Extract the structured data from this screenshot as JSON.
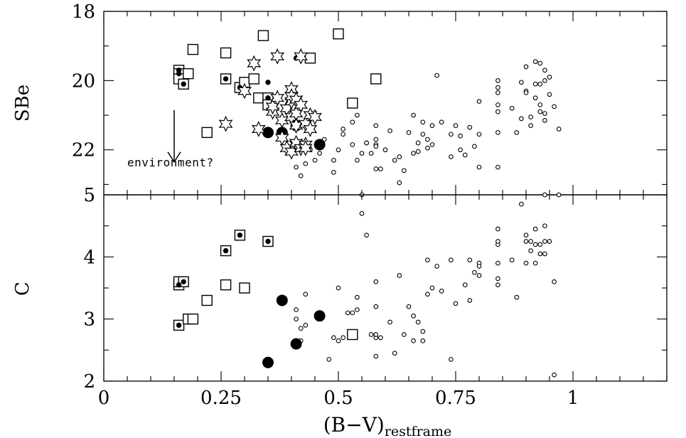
{
  "chart_data": [
    {
      "type": "scatter",
      "panel": "top",
      "ylabel": "SBe",
      "xlim": [
        0,
        1.2
      ],
      "ylim": [
        23.3,
        18
      ],
      "y_inverted": true,
      "yticks": [
        18,
        20,
        22
      ],
      "ytick_labels": [
        "18",
        "20",
        "22"
      ],
      "annotation": {
        "text": "environment?",
        "arrow_x": 0.15,
        "arrow_from_y": 20.85,
        "arrow_to_y": 22.35
      },
      "series": [
        {
          "marker": "small-open-circle",
          "points": [
            [
              0.41,
              22.5
            ],
            [
              0.42,
              22.75
            ],
            [
              0.43,
              22.4
            ],
            [
              0.44,
              22.0
            ],
            [
              0.45,
              22.3
            ],
            [
              0.46,
              22.1
            ],
            [
              0.47,
              21.7
            ],
            [
              0.49,
              22.3
            ],
            [
              0.49,
              22.65
            ],
            [
              0.5,
              22.0
            ],
            [
              0.51,
              21.4
            ],
            [
              0.51,
              21.55
            ],
            [
              0.53,
              21.2
            ],
            [
              0.53,
              21.85
            ],
            [
              0.54,
              22.3
            ],
            [
              0.54,
              21.0
            ],
            [
              0.55,
              23.3
            ],
            [
              0.55,
              22.1
            ],
            [
              0.56,
              21.8
            ],
            [
              0.56,
              21.8
            ],
            [
              0.57,
              22.1
            ],
            [
              0.58,
              21.3
            ],
            [
              0.58,
              21.7
            ],
            [
              0.58,
              21.85
            ],
            [
              0.58,
              21.9
            ],
            [
              0.58,
              22.55
            ],
            [
              0.59,
              22.55
            ],
            [
              0.6,
              22.0
            ],
            [
              0.61,
              21.45
            ],
            [
              0.62,
              22.3
            ],
            [
              0.63,
              22.2
            ],
            [
              0.63,
              22.95
            ],
            [
              0.64,
              22.6
            ],
            [
              0.65,
              21.5
            ],
            [
              0.66,
              21.0
            ],
            [
              0.66,
              22.1
            ],
            [
              0.67,
              21.8
            ],
            [
              0.67,
              22.05
            ],
            [
              0.68,
              21.2
            ],
            [
              0.68,
              21.55
            ],
            [
              0.69,
              21.7
            ],
            [
              0.69,
              21.95
            ],
            [
              0.7,
              21.3
            ],
            [
              0.7,
              21.85
            ],
            [
              0.71,
              19.85
            ],
            [
              0.72,
              21.2
            ],
            [
              0.74,
              21.55
            ],
            [
              0.74,
              22.2
            ],
            [
              0.75,
              21.3
            ],
            [
              0.76,
              21.6
            ],
            [
              0.76,
              22.0
            ],
            [
              0.77,
              22.15
            ],
            [
              0.78,
              21.35
            ],
            [
              0.79,
              21.9
            ],
            [
              0.8,
              21.55
            ],
            [
              0.8,
              22.5
            ],
            [
              0.8,
              20.6
            ],
            [
              0.84,
              20.0
            ],
            [
              0.84,
              20.2
            ],
            [
              0.84,
              20.35
            ],
            [
              0.84,
              20.7
            ],
            [
              0.84,
              20.9
            ],
            [
              0.84,
              21.5
            ],
            [
              0.84,
              22.5
            ],
            [
              0.87,
              20.8
            ],
            [
              0.88,
              21.5
            ],
            [
              0.89,
              21.1
            ],
            [
              0.89,
              20.05
            ],
            [
              0.9,
              19.6
            ],
            [
              0.9,
              20.3
            ],
            [
              0.9,
              20.35
            ],
            [
              0.91,
              21.3
            ],
            [
              0.91,
              21.05
            ],
            [
              0.92,
              19.45
            ],
            [
              0.92,
              20.1
            ],
            [
              0.92,
              20.5
            ],
            [
              0.93,
              19.5
            ],
            [
              0.93,
              20.7
            ],
            [
              0.93,
              20.9
            ],
            [
              0.93,
              20.1
            ],
            [
              0.94,
              19.7
            ],
            [
              0.94,
              20.95
            ],
            [
              0.94,
              21.15
            ],
            [
              0.94,
              20.0
            ],
            [
              0.95,
              20.4
            ],
            [
              0.95,
              19.9
            ],
            [
              0.96,
              20.75
            ],
            [
              0.97,
              21.4
            ]
          ]
        },
        {
          "marker": "large-filled-circle",
          "points": [
            [
              0.35,
              21.5
            ],
            [
              0.38,
              21.5
            ],
            [
              0.41,
              21.3
            ],
            [
              0.46,
              21.85
            ]
          ]
        },
        {
          "marker": "open-square",
          "points": [
            [
              0.16,
              19.7
            ],
            [
              0.16,
              19.8
            ],
            [
              0.16,
              19.95
            ],
            [
              0.17,
              20.1
            ],
            [
              0.18,
              19.8
            ],
            [
              0.19,
              19.1
            ],
            [
              0.22,
              21.5
            ],
            [
              0.26,
              19.2
            ],
            [
              0.26,
              19.95
            ],
            [
              0.29,
              20.2
            ],
            [
              0.3,
              20.05
            ],
            [
              0.32,
              19.95
            ],
            [
              0.33,
              20.5
            ],
            [
              0.34,
              18.7
            ],
            [
              0.35,
              20.5
            ],
            [
              0.35,
              20.7
            ],
            [
              0.44,
              19.35
            ],
            [
              0.5,
              18.65
            ],
            [
              0.53,
              20.65
            ],
            [
              0.58,
              19.95
            ]
          ]
        },
        {
          "marker": "small-filled-dot",
          "points": [
            [
              0.16,
              19.7
            ],
            [
              0.16,
              19.8
            ],
            [
              0.17,
              20.1
            ],
            [
              0.26,
              19.95
            ],
            [
              0.29,
              20.2
            ],
            [
              0.35,
              20.05
            ],
            [
              0.35,
              20.5
            ],
            [
              0.41,
              19.35
            ]
          ]
        },
        {
          "marker": "open-star",
          "points": [
            [
              0.26,
              21.25
            ],
            [
              0.3,
              20.3
            ],
            [
              0.32,
              19.5
            ],
            [
              0.33,
              21.4
            ],
            [
              0.36,
              20.9
            ],
            [
              0.36,
              20.75
            ],
            [
              0.37,
              20.5
            ],
            [
              0.37,
              19.3
            ],
            [
              0.38,
              21.15
            ],
            [
              0.38,
              21.65
            ],
            [
              0.39,
              20.8
            ],
            [
              0.4,
              20.6
            ],
            [
              0.4,
              21.05
            ],
            [
              0.39,
              21.95
            ],
            [
              0.4,
              22.05
            ],
            [
              0.4,
              20.25
            ],
            [
              0.4,
              20.45
            ],
            [
              0.41,
              20.95
            ],
            [
              0.41,
              21.3
            ],
            [
              0.41,
              21.85
            ],
            [
              0.41,
              21.8
            ],
            [
              0.41,
              20.55
            ],
            [
              0.42,
              21.95
            ],
            [
              0.42,
              19.3
            ],
            [
              0.42,
              20.7
            ],
            [
              0.43,
              21.25
            ],
            [
              0.43,
              21.85
            ],
            [
              0.43,
              21.95
            ],
            [
              0.44,
              21.4
            ],
            [
              0.44,
              21.0
            ],
            [
              0.45,
              21.05
            ]
          ]
        }
      ]
    },
    {
      "type": "scatter",
      "panel": "bottom",
      "ylabel": "C",
      "xlabel_main": "(B−V)",
      "xlabel_sub": "restframe",
      "xlim": [
        0,
        1.2
      ],
      "ylim": [
        2,
        5
      ],
      "yticks": [
        2,
        3,
        4,
        5
      ],
      "ytick_labels": [
        "2",
        "3",
        "4",
        "5"
      ],
      "xticks": [
        0,
        0.25,
        0.5,
        0.75,
        1
      ],
      "xtick_labels": [
        "0",
        "0.25",
        "0.5",
        "0.75",
        "1"
      ],
      "series": [
        {
          "marker": "small-open-circle",
          "points": [
            [
              0.41,
              3.0
            ],
            [
              0.41,
              3.15
            ],
            [
              0.42,
              2.65
            ],
            [
              0.42,
              2.85
            ],
            [
              0.43,
              2.9
            ],
            [
              0.43,
              3.4
            ],
            [
              0.48,
              2.35
            ],
            [
              0.49,
              2.7
            ],
            [
              0.5,
              2.65
            ],
            [
              0.5,
              3.5
            ],
            [
              0.51,
              2.7
            ],
            [
              0.52,
              3.1
            ],
            [
              0.53,
              3.1
            ],
            [
              0.54,
              3.35
            ],
            [
              0.54,
              3.15
            ],
            [
              0.55,
              4.7
            ],
            [
              0.56,
              4.35
            ],
            [
              0.57,
              2.75
            ],
            [
              0.58,
              2.4
            ],
            [
              0.58,
              2.7
            ],
            [
              0.58,
              2.75
            ],
            [
              0.58,
              3.2
            ],
            [
              0.58,
              3.6
            ],
            [
              0.59,
              2.7
            ],
            [
              0.61,
              2.95
            ],
            [
              0.62,
              2.45
            ],
            [
              0.63,
              3.7
            ],
            [
              0.64,
              2.75
            ],
            [
              0.65,
              3.2
            ],
            [
              0.66,
              3.05
            ],
            [
              0.66,
              2.65
            ],
            [
              0.67,
              2.95
            ],
            [
              0.68,
              2.8
            ],
            [
              0.68,
              2.65
            ],
            [
              0.69,
              3.4
            ],
            [
              0.69,
              3.95
            ],
            [
              0.7,
              3.5
            ],
            [
              0.71,
              3.85
            ],
            [
              0.72,
              3.45
            ],
            [
              0.74,
              2.35
            ],
            [
              0.74,
              3.95
            ],
            [
              0.75,
              3.25
            ],
            [
              0.77,
              3.55
            ],
            [
              0.78,
              3.95
            ],
            [
              0.78,
              3.3
            ],
            [
              0.79,
              3.75
            ],
            [
              0.8,
              3.9
            ],
            [
              0.8,
              3.7
            ],
            [
              0.8,
              3.85
            ],
            [
              0.84,
              3.55
            ],
            [
              0.84,
              3.65
            ],
            [
              0.84,
              3.9
            ],
            [
              0.84,
              4.2
            ],
            [
              0.84,
              4.25
            ],
            [
              0.84,
              4.45
            ],
            [
              0.87,
              3.95
            ],
            [
              0.88,
              3.35
            ],
            [
              0.89,
              4.85
            ],
            [
              0.9,
              3.9
            ],
            [
              0.9,
              4.25
            ],
            [
              0.9,
              4.35
            ],
            [
              0.91,
              4.25
            ],
            [
              0.91,
              4.1
            ],
            [
              0.92,
              3.9
            ],
            [
              0.92,
              4.45
            ],
            [
              0.92,
              4.2
            ],
            [
              0.93,
              4.05
            ],
            [
              0.93,
              4.2
            ],
            [
              0.94,
              4.5
            ],
            [
              0.94,
              4.25
            ],
            [
              0.94,
              4.05
            ],
            [
              0.94,
              5.0
            ],
            [
              0.95,
              4.25
            ],
            [
              0.96,
              3.6
            ],
            [
              0.96,
              2.1
            ],
            [
              0.97,
              5.0
            ]
          ]
        },
        {
          "marker": "large-filled-circle",
          "points": [
            [
              0.35,
              2.3
            ],
            [
              0.38,
              3.3
            ],
            [
              0.41,
              2.6
            ],
            [
              0.46,
              3.05
            ]
          ]
        },
        {
          "marker": "open-square",
          "points": [
            [
              0.16,
              2.9
            ],
            [
              0.16,
              3.55
            ],
            [
              0.16,
              3.6
            ],
            [
              0.17,
              3.6
            ],
            [
              0.18,
              3.0
            ],
            [
              0.19,
              3.0
            ],
            [
              0.22,
              3.3
            ],
            [
              0.26,
              3.55
            ],
            [
              0.26,
              4.1
            ],
            [
              0.29,
              4.35
            ],
            [
              0.3,
              3.5
            ],
            [
              0.35,
              4.25
            ],
            [
              0.53,
              2.75
            ]
          ]
        },
        {
          "marker": "small-filled-dot",
          "points": [
            [
              0.16,
              2.9
            ],
            [
              0.16,
              3.55
            ],
            [
              0.17,
              3.6
            ],
            [
              0.26,
              4.1
            ],
            [
              0.29,
              4.35
            ],
            [
              0.35,
              4.25
            ]
          ]
        }
      ]
    }
  ]
}
